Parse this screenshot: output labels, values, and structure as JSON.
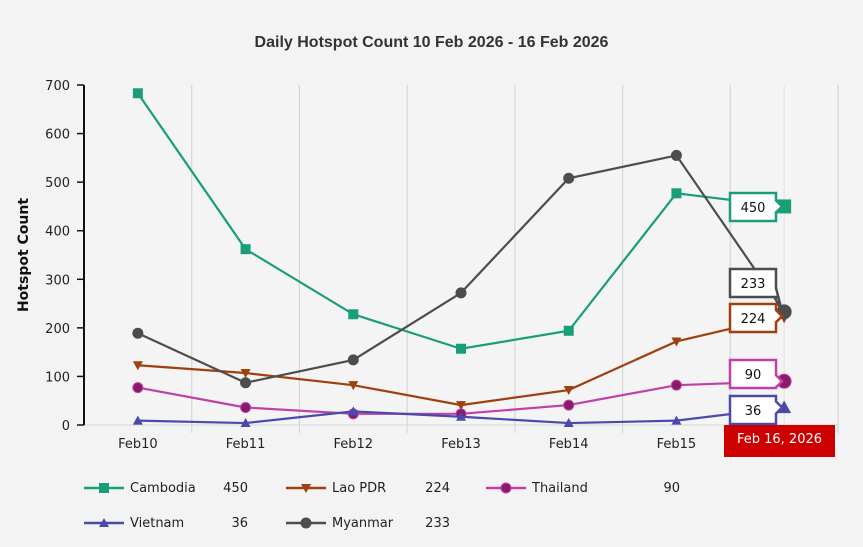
{
  "chart_data": {
    "type": "line",
    "title": "Daily Hotspot Count 10 Feb 2026 - 16 Feb 2026",
    "xlabel": "",
    "ylabel": "Hotspot Count",
    "ylim": [
      0,
      700
    ],
    "yticks": [
      "0",
      "100",
      "200",
      "300",
      "400",
      "500",
      "600",
      "700"
    ],
    "categories": [
      "Feb10",
      "Feb11",
      "Feb12",
      "Feb13",
      "Feb14",
      "Feb15",
      "Feb 16, 2026"
    ],
    "x_tick_labels": [
      "Feb10",
      "Feb11",
      "Feb12",
      "Feb13",
      "Feb14",
      "Feb15"
    ],
    "highlighted_category": "Feb 16, 2026",
    "grid": "vertical",
    "legend_placement": "bottom",
    "series": [
      {
        "name": "Cambodia",
        "color": "#1a9e7a",
        "marker": "square",
        "values": [
          683,
          362,
          228,
          157,
          194,
          477,
          450
        ],
        "latest": "450"
      },
      {
        "name": "Lao PDR",
        "color": "#a0400e",
        "marker": "triangle-down",
        "values": [
          123,
          107,
          82,
          41,
          72,
          172,
          224
        ],
        "latest": "224"
      },
      {
        "name": "Thailand",
        "color": "#c040a8",
        "marker": "circle",
        "marker_fill": "#8a1a6a",
        "values": [
          77,
          36,
          23,
          23,
          41,
          82,
          90
        ],
        "latest": "90"
      },
      {
        "name": "Vietnam",
        "color": "#4a4aaa",
        "marker": "triangle-up",
        "values": [
          9,
          4,
          28,
          17,
          4,
          9,
          36
        ],
        "latest": "36"
      },
      {
        "name": "Myanmar",
        "color": "#4d4d4d",
        "marker": "circle",
        "values": [
          189,
          87,
          134,
          272,
          508,
          555,
          233
        ],
        "latest": "233"
      }
    ]
  }
}
